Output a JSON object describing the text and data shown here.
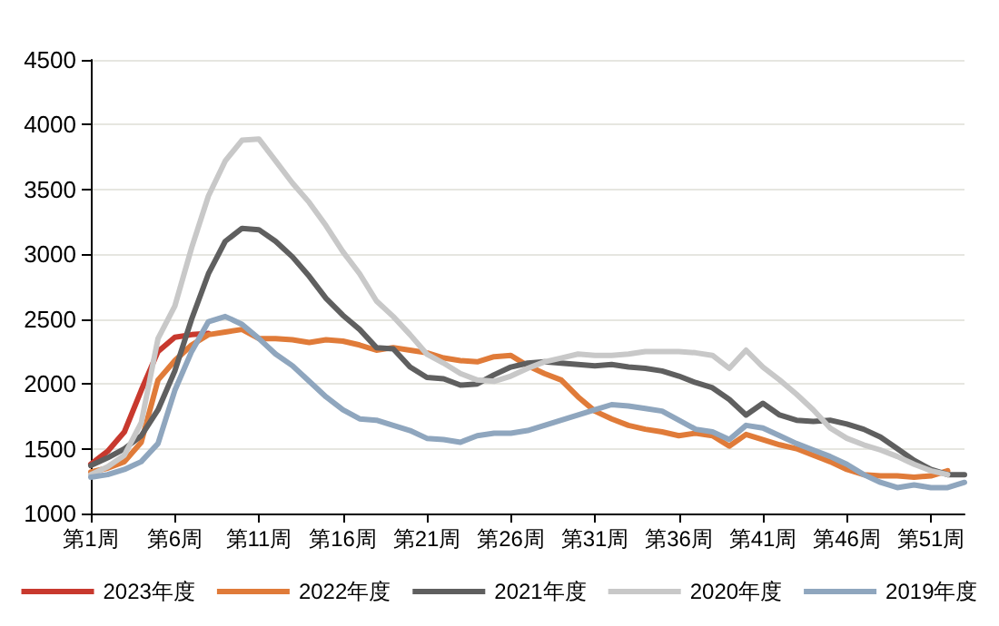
{
  "chart_data": {
    "type": "line",
    "categories": [
      "第1周",
      null,
      null,
      null,
      null,
      "第6周",
      null,
      null,
      null,
      null,
      "第11周",
      null,
      null,
      null,
      null,
      "第16周",
      null,
      null,
      null,
      null,
      "第21周",
      null,
      null,
      null,
      null,
      "第26周",
      null,
      null,
      null,
      null,
      "第31周",
      null,
      null,
      null,
      null,
      "第36周",
      null,
      null,
      null,
      null,
      "第41周",
      null,
      null,
      null,
      null,
      "第46周",
      null,
      null,
      null,
      null,
      "第51周",
      null,
      null
    ],
    "series": [
      {
        "name": "2023年度",
        "color": "#c8392e",
        "values": [
          1380,
          1480,
          1630,
          1950,
          2250,
          2360,
          2380,
          2390,
          null,
          null,
          null,
          null,
          null,
          null,
          null,
          null,
          null,
          null,
          null,
          null,
          null,
          null,
          null,
          null,
          null,
          null,
          null,
          null,
          null,
          null,
          null,
          null,
          null,
          null,
          null,
          null,
          null,
          null,
          null,
          null,
          null,
          null,
          null,
          null,
          null,
          null,
          null,
          null,
          null,
          null,
          null,
          null,
          null
        ]
      },
      {
        "name": "2022年度",
        "color": "#e07b39",
        "values": [
          1320,
          1350,
          1400,
          1550,
          2030,
          2180,
          2300,
          2380,
          2400,
          2420,
          2350,
          2350,
          2340,
          2320,
          2340,
          2330,
          2300,
          2260,
          2280,
          2260,
          2240,
          2200,
          2180,
          2170,
          2210,
          2220,
          2140,
          2080,
          2030,
          1900,
          1790,
          1730,
          1680,
          1650,
          1630,
          1600,
          1620,
          1600,
          1520,
          1610,
          1570,
          1530,
          1500,
          1450,
          1400,
          1340,
          1300,
          1290,
          1290,
          1280,
          1290,
          1330,
          null
        ]
      },
      {
        "name": "2021年度",
        "color": "#5f5f5f",
        "values": [
          1370,
          1430,
          1500,
          1600,
          1800,
          2100,
          2500,
          2850,
          3100,
          3200,
          3190,
          3100,
          2980,
          2830,
          2660,
          2530,
          2420,
          2280,
          2270,
          2130,
          2050,
          2040,
          1990,
          2000,
          2070,
          2130,
          2160,
          2170,
          2160,
          2150,
          2140,
          2150,
          2130,
          2120,
          2100,
          2060,
          2010,
          1970,
          1880,
          1760,
          1850,
          1760,
          1720,
          1710,
          1720,
          1690,
          1650,
          1590,
          1500,
          1410,
          1340,
          1300,
          1300
        ]
      },
      {
        "name": "2020年度",
        "color": "#c8c8c8",
        "values": [
          1300,
          1360,
          1450,
          1700,
          2350,
          2600,
          3050,
          3450,
          3720,
          3880,
          3890,
          3720,
          3550,
          3400,
          3220,
          3020,
          2850,
          2640,
          2520,
          2380,
          2230,
          2160,
          2080,
          2030,
          2020,
          2060,
          2120,
          2170,
          2200,
          2230,
          2220,
          2220,
          2230,
          2250,
          2250,
          2250,
          2240,
          2220,
          2120,
          2260,
          2130,
          2030,
          1920,
          1800,
          1660,
          1580,
          1530,
          1490,
          1440,
          1380,
          1330,
          1300,
          null
        ]
      },
      {
        "name": "2019年度",
        "color": "#8fa6be",
        "values": [
          1280,
          1300,
          1340,
          1400,
          1540,
          1950,
          2250,
          2480,
          2520,
          2460,
          2350,
          2230,
          2140,
          2020,
          1900,
          1800,
          1730,
          1720,
          1680,
          1640,
          1580,
          1570,
          1550,
          1600,
          1620,
          1620,
          1640,
          1680,
          1720,
          1760,
          1800,
          1840,
          1830,
          1810,
          1790,
          1720,
          1650,
          1630,
          1570,
          1680,
          1660,
          1600,
          1540,
          1490,
          1440,
          1380,
          1300,
          1240,
          1200,
          1220,
          1200,
          1200,
          1240
        ]
      }
    ],
    "ylim": [
      1000,
      4500
    ],
    "yticks": [
      1000,
      1500,
      2000,
      2500,
      3000,
      3500,
      4000,
      4500
    ],
    "grid": "y",
    "legend": "bottom",
    "marker": "none",
    "line_style": "solid"
  }
}
